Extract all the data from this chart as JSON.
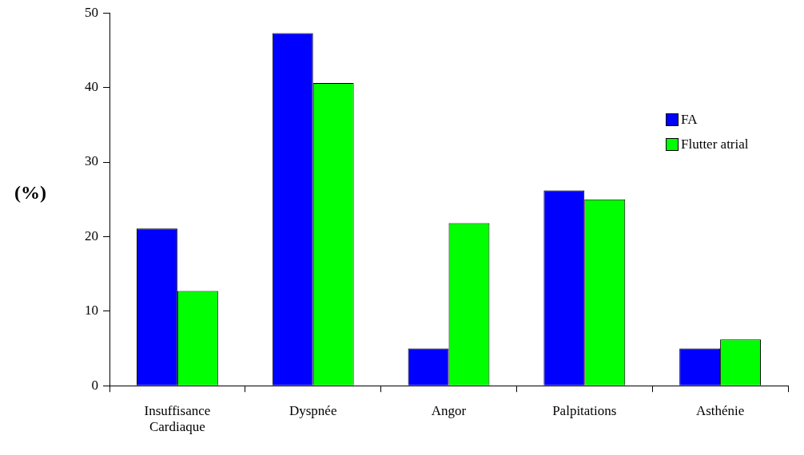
{
  "chart_data": {
    "type": "bar",
    "ylabel": "(%)",
    "categories": [
      "Insuffisance Cardiaque",
      "Dyspnée",
      "Angor",
      "Palpitations",
      "Asthénie"
    ],
    "series": [
      {
        "name": "FA",
        "color": "#0000ff",
        "values": [
          21.1,
          47.3,
          5.0,
          26.2,
          5.0
        ]
      },
      {
        "name": "Flutter atrial",
        "color": "#00ff00",
        "values": [
          12.7,
          40.6,
          21.8,
          25.0,
          6.2
        ]
      }
    ],
    "ylim": [
      0,
      50
    ],
    "yticks": [
      0,
      10,
      20,
      30,
      40,
      50
    ],
    "grid": false,
    "legend": "right"
  }
}
